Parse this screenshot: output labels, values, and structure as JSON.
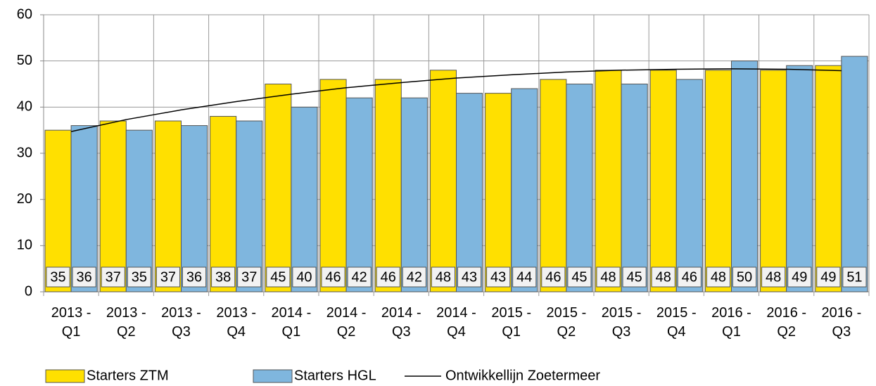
{
  "chart_data": {
    "type": "bar",
    "categories": [
      "2013 - Q1",
      "2013 - Q2",
      "2013 - Q3",
      "2013 - Q4",
      "2014 - Q1",
      "2014 - Q2",
      "2014 - Q3",
      "2014 - Q4",
      "2015 - Q1",
      "2015 - Q2",
      "2015 - Q3",
      "2015 - Q4",
      "2016 - Q1",
      "2016 - Q2",
      "2016 - Q3"
    ],
    "series": [
      {
        "name": "Starters ZTM",
        "color": "#ffe000",
        "values": [
          35,
          37,
          37,
          38,
          45,
          46,
          46,
          48,
          43,
          46,
          48,
          48,
          48,
          48,
          49
        ]
      },
      {
        "name": "Starters HGL",
        "color": "#7fb6de",
        "values": [
          36,
          35,
          36,
          37,
          40,
          42,
          42,
          43,
          44,
          45,
          45,
          46,
          50,
          49,
          51
        ]
      },
      {
        "name": "Ontwikkellijn Zoetermeer",
        "type": "line",
        "color": "#000000",
        "values": [
          34.7,
          37.3,
          39.4,
          41.2,
          42.8,
          44.2,
          45.3,
          46.3,
          47.0,
          47.6,
          48.0,
          48.2,
          48.3,
          48.2,
          47.9
        ]
      }
    ],
    "ylim": [
      0,
      60
    ],
    "yticks": [
      0,
      10,
      20,
      30,
      40,
      50,
      60
    ],
    "grid": true,
    "legend": "bottom"
  }
}
